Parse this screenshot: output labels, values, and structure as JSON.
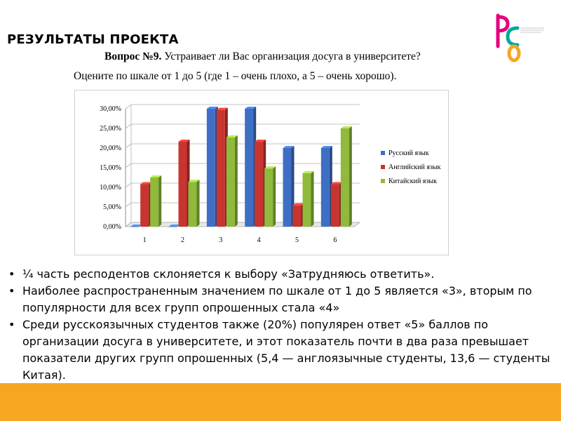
{
  "slide": {
    "title": "РЕЗУЛЬТАТЫ ПРОЕКТА",
    "question_bold": "Вопрос №9.",
    "question_rest": " Устраивает ли Вас организация досуга в университете?",
    "scale_text": "Оцените по шкале от 1 до 5 (где 1 – очень плохо, а 5 – очень хорошо).",
    "bullets": [
      "¼ часть респодентов склоняется к выбору «Затрудняюсь ответить».",
      "Наиболее распространенным значением по шкале от 1 до 5 является «3», вторым по популярности для всех групп опрошенных стала «4»",
      "Среди русскоязычных студентов также (20%) популярен ответ «5» баллов по организации досуга в университете, и этот показатель почти в два раза превышает показатели других групп опрошенных (5,4 — англоязычные студенты, 13,6 — студенты Китая)."
    ],
    "bullet_symbol": "•",
    "logo_colors": [
      "#e6007e",
      "#00a99d",
      "#f7a621"
    ],
    "accent_bar_color": "#f7a621"
  },
  "chart_data": {
    "type": "bar",
    "style": "3d-clustered",
    "categories": [
      "1",
      "2",
      "3",
      "4",
      "5",
      "6"
    ],
    "series": [
      {
        "name": "Русский язык",
        "color": "#3e6fc4",
        "values": [
          0,
          0,
          30,
          30,
          20,
          20
        ]
      },
      {
        "name": "Английский язык",
        "color": "#c83430",
        "values": [
          10.8,
          21.6,
          29.7,
          21.6,
          5.4,
          10.8
        ]
      },
      {
        "name": "Китайский язык",
        "color": "#8fba3c",
        "values": [
          12.5,
          11.4,
          22.7,
          14.8,
          13.6,
          25
        ]
      }
    ],
    "yticks": [
      "0,00%",
      "5,00%",
      "10,00%",
      "15,00%",
      "20,00%",
      "25,00%",
      "30,00%"
    ],
    "ylim": [
      0,
      30
    ],
    "grid": true,
    "legend_position": "right"
  }
}
